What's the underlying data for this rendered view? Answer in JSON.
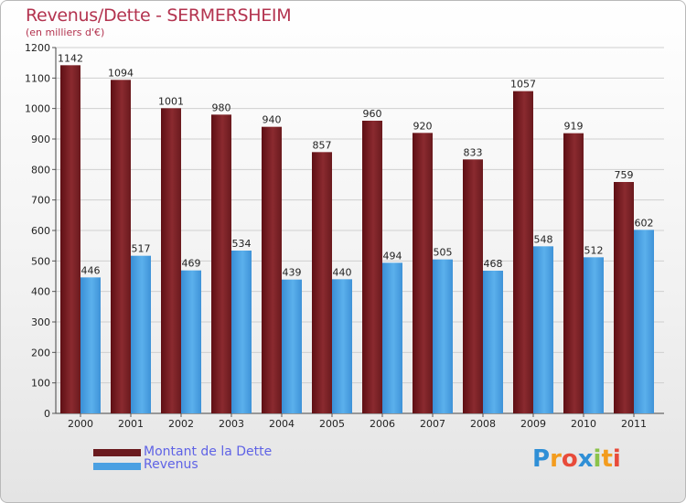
{
  "header": {
    "title": "Revenus/Dette - SERMERSHEIM",
    "subtitle": "(en milliers d'€)"
  },
  "chart_data": {
    "type": "bar",
    "categories": [
      "2000",
      "2001",
      "2002",
      "2003",
      "2004",
      "2005",
      "2006",
      "2007",
      "2008",
      "2009",
      "2010",
      "2011"
    ],
    "series": [
      {
        "name": "Montant de la Dette",
        "color": "#7a1f24",
        "values": [
          1142,
          1094,
          1001,
          980,
          940,
          857,
          960,
          920,
          833,
          1057,
          919,
          759
        ]
      },
      {
        "name": "Revenus",
        "color": "#4aa0e2",
        "values": [
          446,
          517,
          469,
          534,
          439,
          440,
          494,
          505,
          468,
          548,
          512,
          602
        ]
      }
    ],
    "ylim": [
      0,
      1200
    ],
    "yticks": [
      0,
      100,
      200,
      300,
      400,
      500,
      600,
      700,
      800,
      900,
      1000,
      1100,
      1200
    ],
    "grid": true,
    "legend": "bottom-left"
  },
  "legend": {
    "items": [
      {
        "label": "Montant de la Dette",
        "color": "#6a1a1e"
      },
      {
        "label": "Revenus",
        "color": "#4aa0e2"
      }
    ]
  },
  "logo": {
    "text": "Proxiti",
    "letters": [
      {
        "ch": "P",
        "color": "#2f8fd6"
      },
      {
        "ch": "r",
        "color": "#f39c1e"
      },
      {
        "ch": "o",
        "color": "#e84b3a"
      },
      {
        "ch": "x",
        "color": "#2f8fd6"
      },
      {
        "ch": "i",
        "color": "#8bc34a"
      },
      {
        "ch": "t",
        "color": "#f39c1e"
      },
      {
        "ch": "i",
        "color": "#e84b3a"
      }
    ]
  }
}
